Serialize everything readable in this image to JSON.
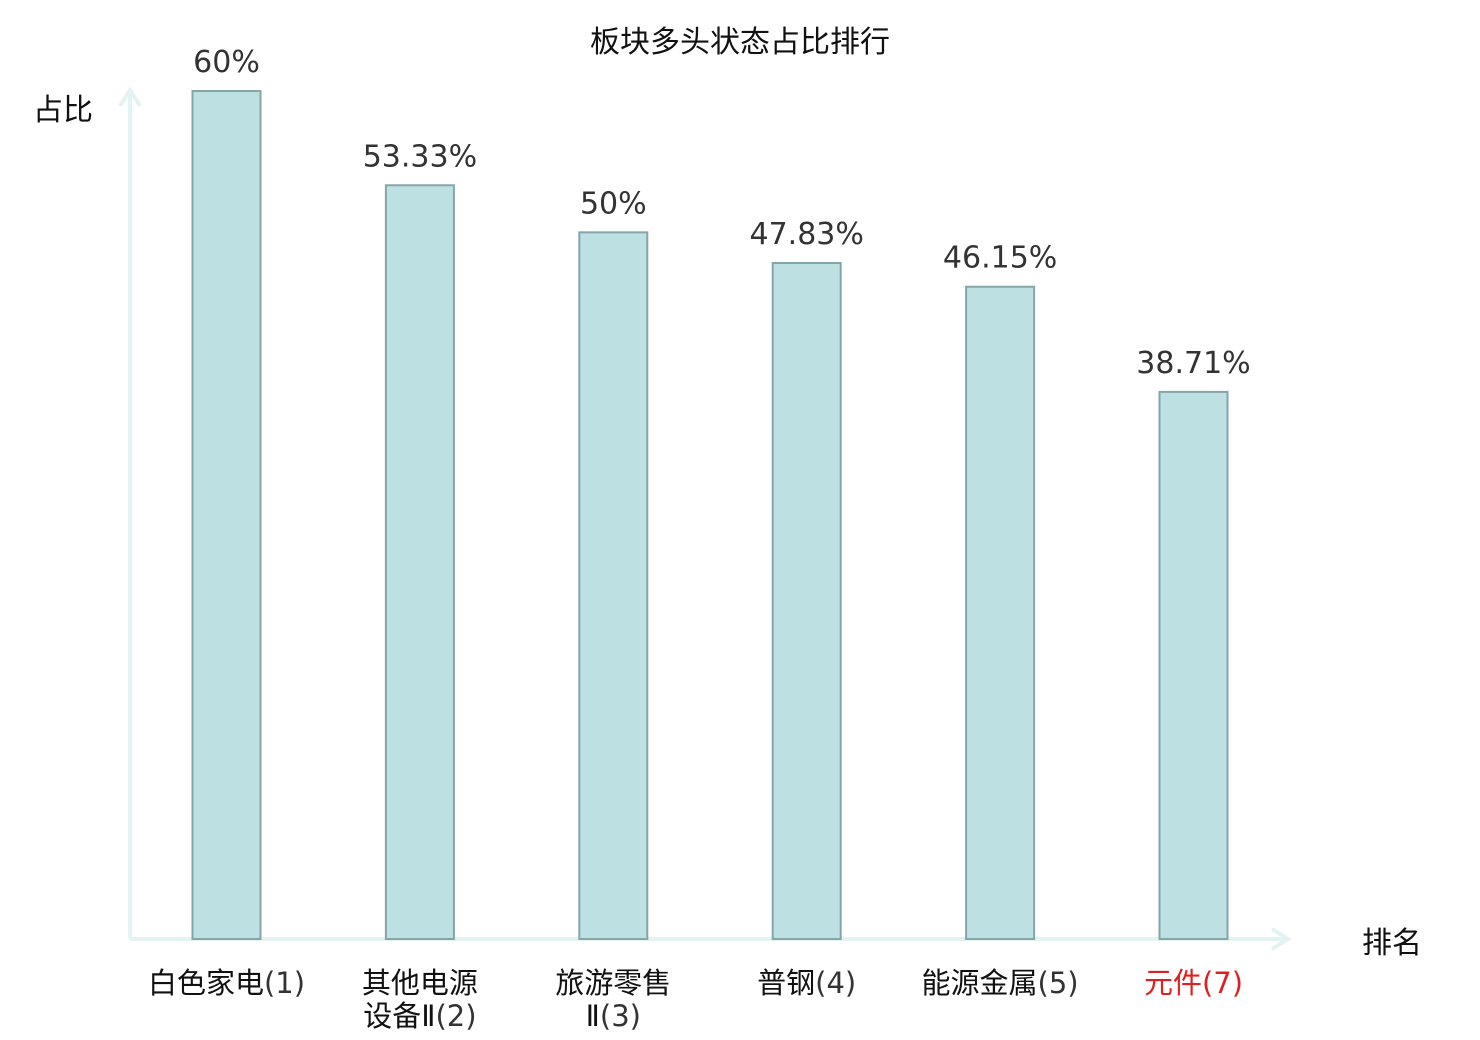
{
  "chart_data": {
    "type": "bar",
    "title": "板块多头状态占比排行",
    "ylabel": "占比",
    "xlabel": "排名",
    "ylim": [
      0,
      60
    ],
    "grid": false,
    "legend": "none",
    "categories": [
      {
        "lines": [
          "白色家电"
        ],
        "rank": "(1)",
        "highlight": false
      },
      {
        "lines": [
          "其他电源",
          "设备Ⅱ"
        ],
        "rank": "(2)",
        "highlight": false
      },
      {
        "lines": [
          "旅游零售",
          "Ⅱ"
        ],
        "rank": "(3)",
        "highlight": false
      },
      {
        "lines": [
          "普钢"
        ],
        "rank": "(4)",
        "highlight": false
      },
      {
        "lines": [
          "能源金属"
        ],
        "rank": "(5)",
        "highlight": false
      },
      {
        "lines": [
          "元件"
        ],
        "rank": "(7)",
        "highlight": true
      }
    ],
    "values": [
      60,
      53.33,
      50,
      47.83,
      46.15,
      38.71
    ],
    "value_labels": [
      "60%",
      "53.33%",
      "50%",
      "47.83%",
      "46.15%",
      "38.71%"
    ]
  },
  "colors": {
    "bar_fill": "#bde0e3",
    "bar_stroke": "#86a5a8",
    "axis": "#e2f3f1",
    "highlight_label": "#e02020",
    "text": "#111111"
  }
}
